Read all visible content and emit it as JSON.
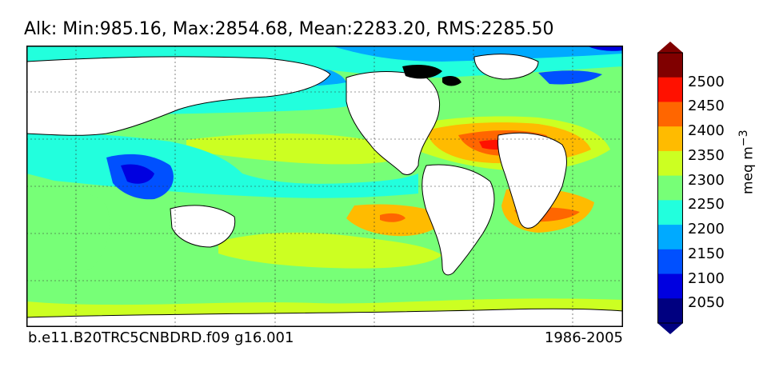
{
  "header": {
    "title": "Alk: Min:985.16, Max:2854.68, Mean:2283.20, RMS:2285.50"
  },
  "footer": {
    "case_name": "b.e11.B20TRC5CNBDRD.f09 g16.001",
    "years": "1986-2005"
  },
  "colorbar": {
    "unit": "meq m",
    "unit_exponent": "−3",
    "tick_labels": [
      "2500",
      "2450",
      "2400",
      "2350",
      "2300",
      "2250",
      "2200",
      "2150",
      "2100",
      "2050"
    ],
    "colors": {
      "lt2050": "#000080",
      "2050": "#0000e0",
      "2100": "#0050ff",
      "2150": "#00aaff",
      "2200": "#22ffdd",
      "2250": "#77ff77",
      "2300": "#ccff22",
      "2350": "#ffbb00",
      "2400": "#ff6600",
      "2450": "#ff1100",
      "2500": "#800000"
    }
  },
  "colors": {
    "land": "#ffffff",
    "coast": "#000000",
    "ice": "#000000"
  }
}
